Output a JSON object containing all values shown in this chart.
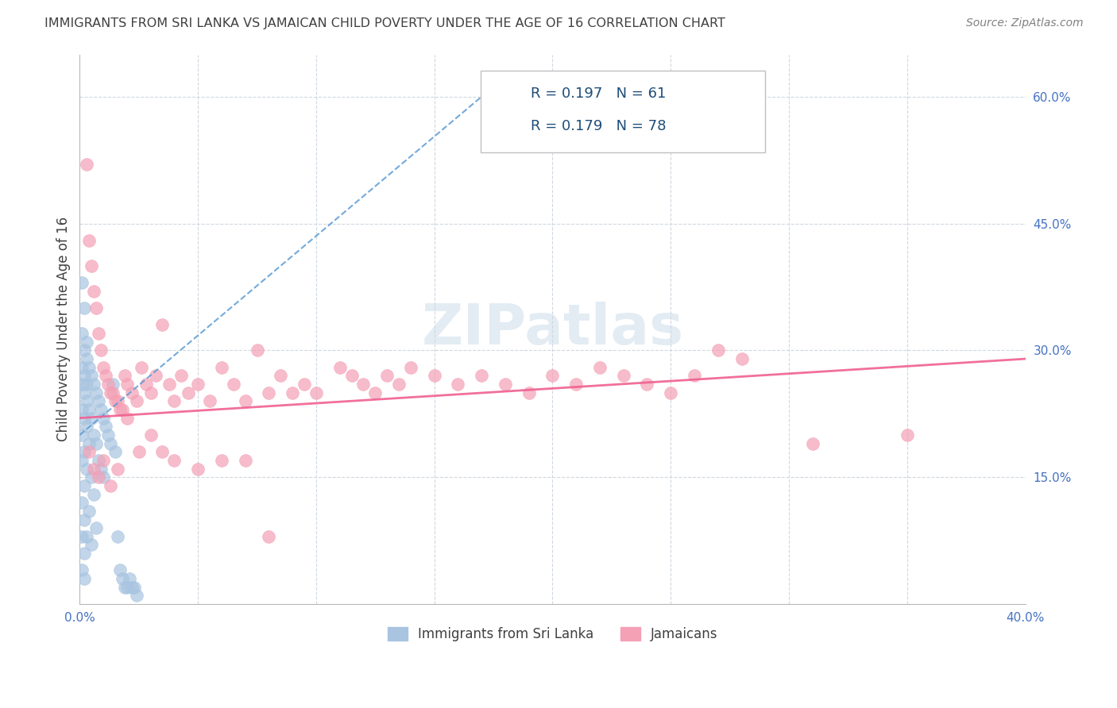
{
  "title": "IMMIGRANTS FROM SRI LANKA VS JAMAICAN CHILD POVERTY UNDER THE AGE OF 16 CORRELATION CHART",
  "source": "Source: ZipAtlas.com",
  "ylabel": "Child Poverty Under the Age of 16",
  "xlim": [
    0.0,
    0.4
  ],
  "ylim": [
    0.0,
    0.65
  ],
  "sri_lanka_R": 0.197,
  "sri_lanka_N": 61,
  "jamaican_R": 0.179,
  "jamaican_N": 78,
  "sri_lanka_color": "#a8c4e0",
  "jamaican_color": "#f4a0b5",
  "sri_lanka_line_color": "#5b9bd5",
  "jamaican_line_color": "#f06090",
  "background_color": "#ffffff",
  "grid_color": "#d0d8e0",
  "title_color": "#404040",
  "source_color": "#808080",
  "label_color": "#4472c4",
  "sl_x": [
    0.001,
    0.001,
    0.001,
    0.001,
    0.001,
    0.001,
    0.001,
    0.001,
    0.001,
    0.001,
    0.002,
    0.002,
    0.002,
    0.002,
    0.002,
    0.002,
    0.002,
    0.002,
    0.002,
    0.002,
    0.003,
    0.003,
    0.003,
    0.003,
    0.003,
    0.003,
    0.003,
    0.004,
    0.004,
    0.004,
    0.004,
    0.005,
    0.005,
    0.005,
    0.005,
    0.006,
    0.006,
    0.006,
    0.007,
    0.007,
    0.007,
    0.008,
    0.008,
    0.009,
    0.009,
    0.01,
    0.01,
    0.011,
    0.012,
    0.013,
    0.014,
    0.015,
    0.016,
    0.017,
    0.018,
    0.019,
    0.02,
    0.021,
    0.022,
    0.023,
    0.024
  ],
  "sl_y": [
    0.38,
    0.32,
    0.28,
    0.26,
    0.23,
    0.2,
    0.17,
    0.12,
    0.08,
    0.04,
    0.35,
    0.3,
    0.27,
    0.25,
    0.22,
    0.18,
    0.14,
    0.1,
    0.06,
    0.03,
    0.31,
    0.29,
    0.26,
    0.24,
    0.21,
    0.16,
    0.08,
    0.28,
    0.23,
    0.19,
    0.11,
    0.27,
    0.22,
    0.15,
    0.07,
    0.26,
    0.2,
    0.13,
    0.25,
    0.19,
    0.09,
    0.24,
    0.17,
    0.23,
    0.16,
    0.22,
    0.15,
    0.21,
    0.2,
    0.19,
    0.26,
    0.18,
    0.08,
    0.04,
    0.03,
    0.02,
    0.02,
    0.03,
    0.02,
    0.02,
    0.01
  ],
  "ja_x": [
    0.003,
    0.004,
    0.005,
    0.006,
    0.007,
    0.008,
    0.009,
    0.01,
    0.011,
    0.012,
    0.013,
    0.014,
    0.015,
    0.016,
    0.017,
    0.018,
    0.019,
    0.02,
    0.022,
    0.024,
    0.026,
    0.028,
    0.03,
    0.032,
    0.035,
    0.038,
    0.04,
    0.043,
    0.046,
    0.05,
    0.055,
    0.06,
    0.065,
    0.07,
    0.075,
    0.08,
    0.085,
    0.09,
    0.095,
    0.1,
    0.11,
    0.115,
    0.12,
    0.125,
    0.13,
    0.135,
    0.14,
    0.15,
    0.16,
    0.17,
    0.18,
    0.19,
    0.2,
    0.21,
    0.22,
    0.23,
    0.24,
    0.25,
    0.26,
    0.27,
    0.28,
    0.31,
    0.35,
    0.004,
    0.006,
    0.008,
    0.01,
    0.013,
    0.016,
    0.02,
    0.025,
    0.03,
    0.035,
    0.04,
    0.05,
    0.06,
    0.07,
    0.08
  ],
  "ja_y": [
    0.52,
    0.43,
    0.4,
    0.37,
    0.35,
    0.32,
    0.3,
    0.28,
    0.27,
    0.26,
    0.25,
    0.25,
    0.24,
    0.24,
    0.23,
    0.23,
    0.27,
    0.26,
    0.25,
    0.24,
    0.28,
    0.26,
    0.25,
    0.27,
    0.33,
    0.26,
    0.24,
    0.27,
    0.25,
    0.26,
    0.24,
    0.28,
    0.26,
    0.24,
    0.3,
    0.25,
    0.27,
    0.25,
    0.26,
    0.25,
    0.28,
    0.27,
    0.26,
    0.25,
    0.27,
    0.26,
    0.28,
    0.27,
    0.26,
    0.27,
    0.26,
    0.25,
    0.27,
    0.26,
    0.28,
    0.27,
    0.26,
    0.25,
    0.27,
    0.3,
    0.29,
    0.19,
    0.2,
    0.18,
    0.16,
    0.15,
    0.17,
    0.14,
    0.16,
    0.22,
    0.18,
    0.2,
    0.18,
    0.17,
    0.16,
    0.17,
    0.17,
    0.08
  ]
}
